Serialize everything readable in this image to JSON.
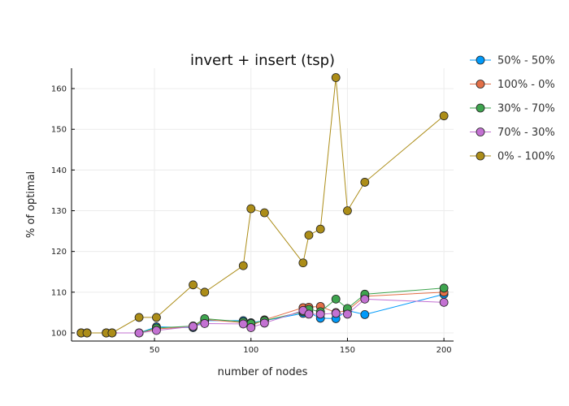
{
  "chart_data": {
    "type": "line",
    "title": "invert + insert (tsp)",
    "xlabel": "number of nodes",
    "ylabel": "% of optimal",
    "xlim": [
      7,
      205
    ],
    "ylim": [
      98,
      165
    ],
    "xticks": [
      50,
      100,
      150,
      200
    ],
    "yticks": [
      100,
      110,
      120,
      130,
      140,
      150,
      160
    ],
    "grid": true,
    "legend": "top-right",
    "x": [
      12,
      15,
      25,
      28,
      42,
      51,
      70,
      76,
      96,
      100,
      107,
      127,
      130,
      136,
      144,
      150,
      159,
      200
    ],
    "series": [
      {
        "name": "50% - 50%",
        "color": "#009AFA",
        "values": [
          100,
          100,
          100,
          100,
          100,
          101.5,
          101.3,
          103,
          103,
          102.5,
          103,
          104.8,
          105,
          103.6,
          103.5,
          105.5,
          104.5,
          109.5
        ]
      },
      {
        "name": "100% - 0%",
        "color": "#E36F47",
        "values": [
          100,
          100,
          100,
          100,
          100,
          101,
          101.5,
          103.3,
          102.5,
          101.8,
          103.2,
          106.2,
          106.3,
          106.5,
          105,
          105.5,
          109,
          110
        ]
      },
      {
        "name": "30% - 70%",
        "color": "#3EA44E",
        "values": [
          100,
          100,
          100,
          100,
          100,
          101.2,
          101.7,
          103.5,
          102.7,
          102.3,
          103,
          105.2,
          105.8,
          105.2,
          108.3,
          106,
          109.5,
          111
        ]
      },
      {
        "name": "70% - 30%",
        "color": "#C371D2",
        "values": [
          100,
          100,
          100,
          100,
          100,
          100.6,
          101.6,
          102.3,
          102.2,
          101.3,
          102.4,
          105.5,
          104.6,
          104.6,
          104.8,
          104.6,
          108.3,
          107.5
        ]
      },
      {
        "name": "0% - 100%",
        "color": "#AC8D18",
        "values": [
          100,
          100,
          100,
          100,
          103.8,
          103.8,
          111.8,
          110,
          116.5,
          130.5,
          129.5,
          117.2,
          124,
          125.5,
          162.7,
          130,
          137,
          153.3
        ]
      }
    ]
  }
}
